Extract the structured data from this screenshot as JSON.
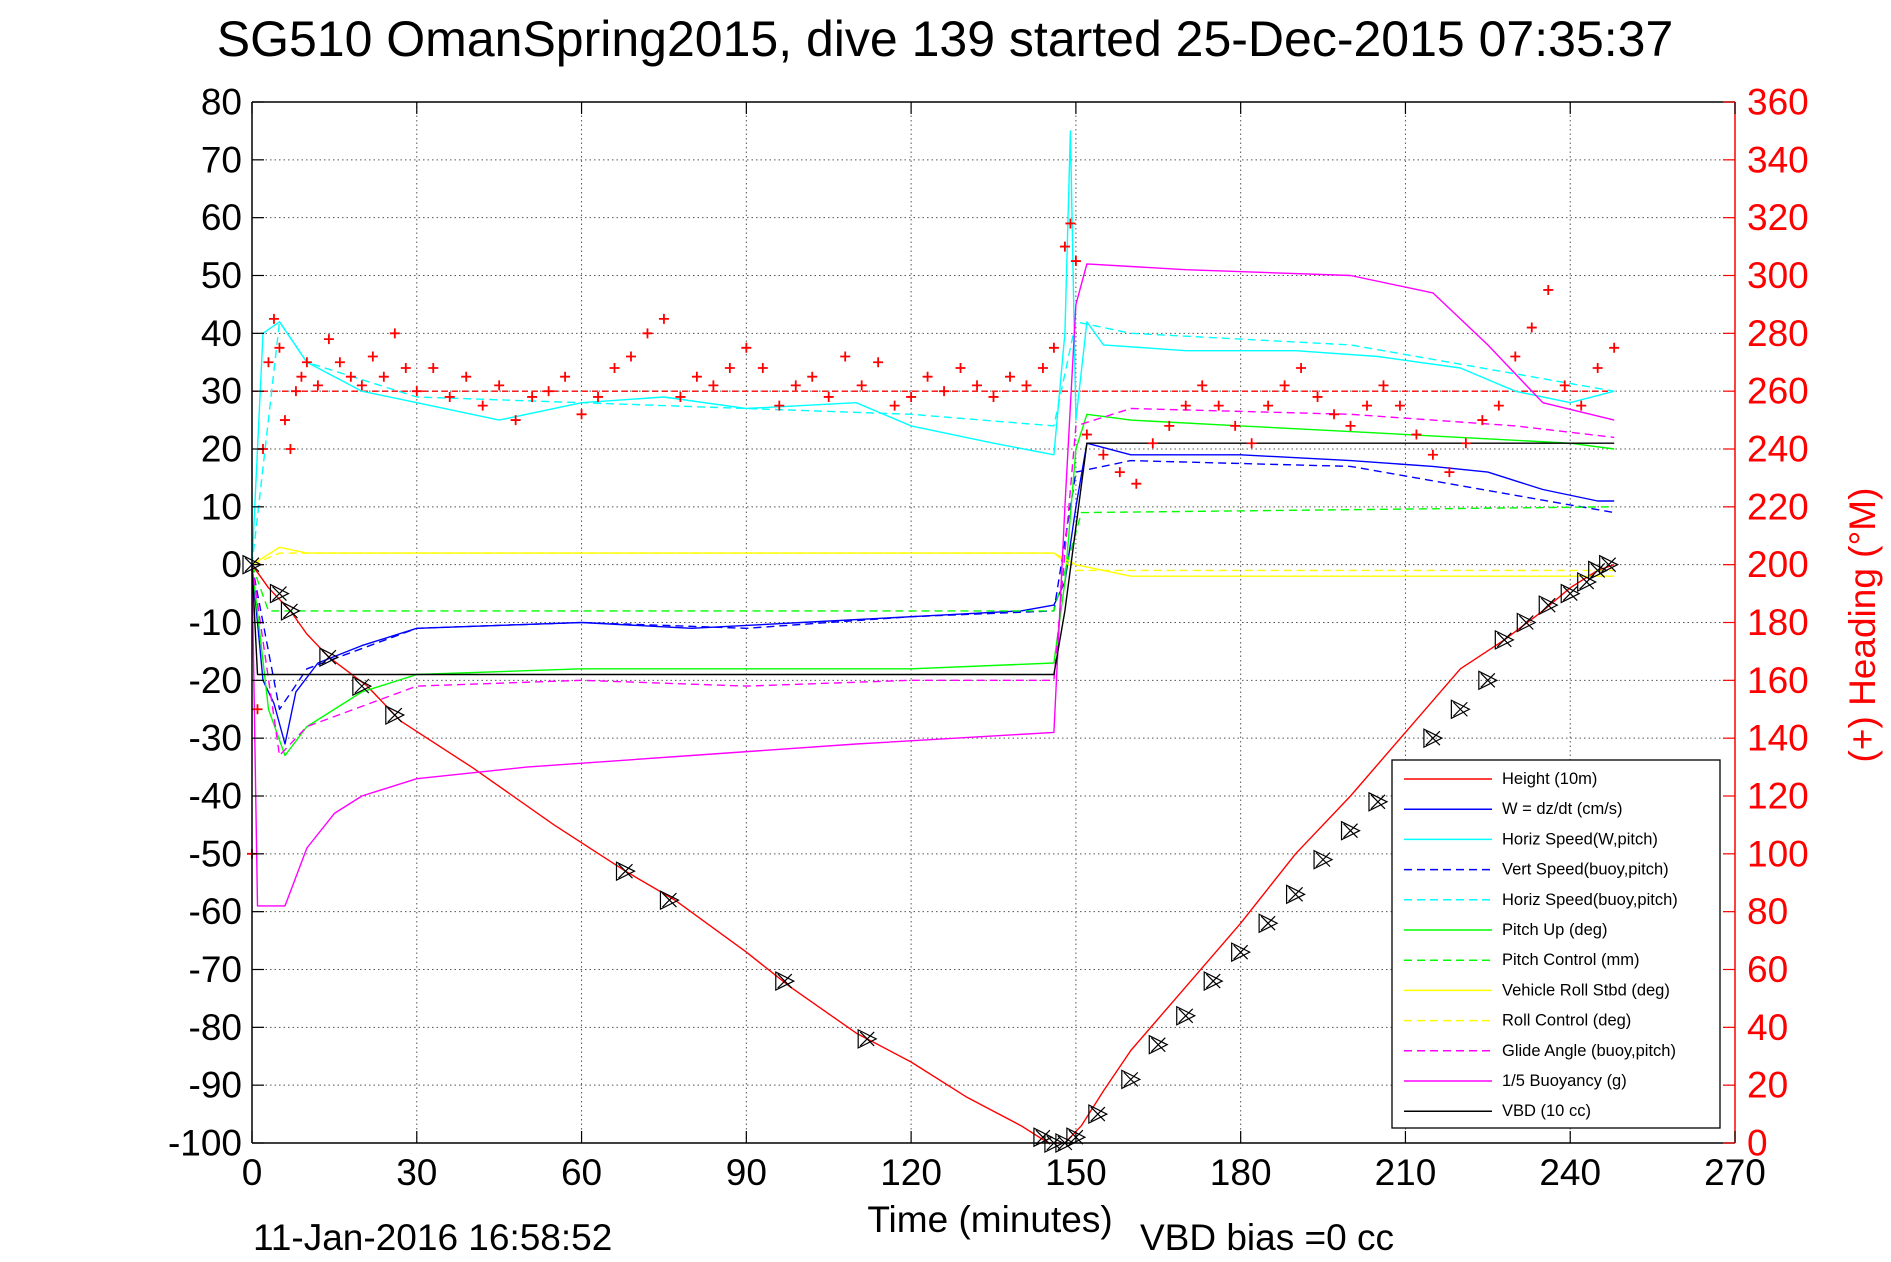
{
  "chart_data": {
    "type": "line",
    "title": "SG510 OmanSpring2015, dive 139 started 25-Dec-2015 07:35:37",
    "xlabel": "Time (minutes)",
    "ylabel_right": "(+) Heading (°M)",
    "footer_left": "11-Jan-2016 16:58:52",
    "footer_right": "VBD bias =0 cc",
    "xlim": [
      0,
      270
    ],
    "ylim": [
      -100,
      80
    ],
    "ylim_right": [
      0,
      360
    ],
    "x_ticks": [
      0,
      30,
      60,
      90,
      120,
      150,
      180,
      210,
      240,
      270
    ],
    "y_ticks": [
      80,
      70,
      60,
      50,
      40,
      30,
      20,
      10,
      0,
      -10,
      -20,
      -30,
      -40,
      -50,
      -60,
      -70,
      -80,
      -90,
      -100
    ],
    "y_ticks_right": [
      360,
      340,
      320,
      300,
      280,
      260,
      240,
      220,
      200,
      180,
      160,
      140,
      120,
      100,
      80,
      60,
      40,
      20,
      0
    ],
    "grid": true,
    "legend_position": "lower-right",
    "series": [
      {
        "name": "Height (10m)",
        "color": "#ff0000",
        "style": "solid",
        "x": [
          0,
          3,
          7,
          10,
          14,
          21,
          27,
          40,
          55,
          68,
          77,
          90,
          98,
          110,
          120,
          130,
          140,
          145,
          148,
          151,
          155,
          160,
          170,
          180,
          190,
          200,
          210,
          220,
          228,
          235,
          240,
          245,
          248
        ],
        "y": [
          0,
          -4,
          -8,
          -12,
          -16,
          -21,
          -27,
          -35,
          -45,
          -53,
          -58,
          -67,
          -73,
          -81,
          -86,
          -92,
          -97,
          -100,
          -100,
          -97,
          -91,
          -84,
          -73,
          -62,
          -50,
          -40,
          -29,
          -18,
          -13,
          -8,
          -4,
          -1,
          0
        ]
      },
      {
        "name": "W = dz/dt (cm/s)",
        "color": "#0000ff",
        "style": "solid",
        "x": [
          0,
          2,
          4,
          6,
          8,
          12,
          20,
          30,
          60,
          80,
          100,
          120,
          140,
          146,
          148,
          150,
          152,
          160,
          180,
          200,
          215,
          225,
          235,
          245,
          248
        ],
        "y": [
          0,
          -20,
          -24,
          -31,
          -22,
          -17,
          -14,
          -11,
          -10,
          -11,
          -10,
          -9,
          -8,
          -7,
          -3,
          10,
          21,
          19,
          19,
          18,
          17,
          16,
          13,
          11,
          11
        ]
      },
      {
        "name": "Horiz Speed(W,pitch)",
        "color": "#00ffff",
        "style": "solid",
        "x": [
          0,
          2,
          5,
          10,
          20,
          30,
          45,
          60,
          75,
          90,
          110,
          120,
          135,
          146,
          148,
          149,
          150,
          152,
          155,
          170,
          190,
          205,
          220,
          230,
          240,
          248
        ],
        "y": [
          0,
          40,
          42,
          35,
          30,
          28,
          25,
          28,
          29,
          27,
          28,
          24,
          21,
          19,
          40,
          75,
          25,
          42,
          38,
          37,
          37,
          36,
          34,
          30,
          28,
          30
        ]
      },
      {
        "name": "Vert Speed(buoy,pitch)",
        "color": "#0000ff",
        "style": "dashed",
        "x": [
          0,
          5,
          10,
          30,
          60,
          90,
          120,
          146,
          150,
          160,
          200,
          230,
          248
        ],
        "y": [
          0,
          -25,
          -18,
          -11,
          -10,
          -11,
          -9,
          -8,
          16,
          18,
          17,
          12,
          9
        ]
      },
      {
        "name": "Horiz Speed(buoy,pitch)",
        "color": "#00ffff",
        "style": "dashed",
        "x": [
          0,
          5,
          10,
          30,
          60,
          90,
          120,
          146,
          150,
          160,
          200,
          230,
          248
        ],
        "y": [
          0,
          42,
          35,
          29,
          28,
          27,
          26,
          24,
          42,
          40,
          38,
          33,
          30
        ]
      },
      {
        "name": "Pitch Up (deg)",
        "color": "#00ff00",
        "style": "solid",
        "x": [
          0,
          3,
          6,
          10,
          20,
          30,
          60,
          90,
          120,
          146,
          148,
          150,
          152,
          160,
          180,
          200,
          220,
          240,
          248
        ],
        "y": [
          0,
          -25,
          -33,
          -28,
          -22,
          -19,
          -18,
          -18,
          -18,
          -17,
          -3,
          20,
          26,
          25,
          24,
          23,
          22,
          21,
          20
        ]
      },
      {
        "name": "Pitch Control (mm)",
        "color": "#00ff00",
        "style": "dashed",
        "x": [
          0,
          3,
          6,
          60,
          146,
          151,
          248
        ],
        "y": [
          0,
          -8,
          -8,
          -8,
          -8,
          9,
          10
        ]
      },
      {
        "name": "Vehicle Roll Stbd (deg)",
        "color": "#ffff00",
        "style": "solid",
        "x": [
          0,
          5,
          10,
          30,
          60,
          90,
          120,
          146,
          150,
          160,
          180,
          200,
          220,
          240,
          248
        ],
        "y": [
          0,
          3,
          2,
          2,
          2,
          2,
          2,
          2,
          0,
          -2,
          -2,
          -2,
          -2,
          -2,
          -2
        ]
      },
      {
        "name": "Roll Control (deg)",
        "color": "#ffff00",
        "style": "dashed",
        "x": [
          0,
          5,
          30,
          60,
          90,
          120,
          146,
          150,
          200,
          248
        ],
        "y": [
          0,
          2,
          2,
          2,
          2,
          2,
          2,
          -1,
          -1,
          -1
        ]
      },
      {
        "name": "Glide Angle (buoy,pitch)",
        "color": "#ff00ff",
        "style": "dashed",
        "x": [
          0,
          5,
          10,
          30,
          60,
          90,
          120,
          146,
          150,
          160,
          200,
          230,
          248
        ],
        "y": [
          0,
          -33,
          -28,
          -21,
          -20,
          -21,
          -20,
          -20,
          24,
          27,
          26,
          24,
          22
        ]
      },
      {
        "name": "1/5 Buoyancy (g)",
        "color": "#ff00ff",
        "style": "solid",
        "x": [
          0,
          1,
          6,
          10,
          15,
          20,
          30,
          50,
          80,
          110,
          146,
          148,
          150,
          152,
          170,
          200,
          215,
          225,
          235,
          248
        ],
        "y": [
          0,
          -59,
          -59,
          -49,
          -43,
          -40,
          -37,
          -35,
          -33,
          -31,
          -29,
          10,
          45,
          52,
          51,
          50,
          47,
          38,
          28,
          25
        ]
      },
      {
        "name": "VBD (10 cc)",
        "color": "#000000",
        "style": "solid",
        "x": [
          0,
          1,
          146,
          148,
          152,
          248
        ],
        "y": [
          0,
          -19,
          -19,
          -8,
          21,
          21
        ]
      }
    ],
    "heading_markers": {
      "name": "(+) Heading (°M)",
      "color": "#ff0000",
      "x": [
        0,
        1,
        2,
        3,
        4,
        5,
        6,
        7,
        8,
        9,
        10,
        12,
        14,
        16,
        18,
        20,
        22,
        24,
        26,
        28,
        30,
        33,
        36,
        39,
        42,
        45,
        48,
        51,
        54,
        57,
        60,
        63,
        66,
        69,
        72,
        75,
        78,
        81,
        84,
        87,
        90,
        93,
        96,
        99,
        102,
        105,
        108,
        111,
        114,
        117,
        120,
        123,
        126,
        129,
        132,
        135,
        138,
        141,
        144,
        146,
        148,
        149,
        150,
        152,
        155,
        158,
        161,
        164,
        167,
        170,
        173,
        176,
        179,
        182,
        185,
        188,
        191,
        194,
        197,
        200,
        203,
        206,
        209,
        212,
        215,
        218,
        221,
        224,
        227,
        230,
        233,
        236,
        239,
        242,
        245,
        248
      ],
      "y": [
        100,
        150,
        240,
        270,
        285,
        275,
        250,
        240,
        260,
        265,
        270,
        262,
        278,
        270,
        265,
        262,
        272,
        265,
        280,
        268,
        260,
        268,
        258,
        265,
        255,
        262,
        250,
        258,
        260,
        265,
        252,
        258,
        268,
        272,
        280,
        285,
        258,
        265,
        262,
        268,
        275,
        268,
        255,
        262,
        265,
        258,
        272,
        262,
        270,
        255,
        258,
        265,
        260,
        268,
        262,
        258,
        265,
        262,
        268,
        275,
        310,
        318,
        305,
        245,
        238,
        232,
        228,
        242,
        248,
        255,
        262,
        255,
        248,
        242,
        255,
        262,
        268,
        258,
        252,
        248,
        255,
        262,
        255,
        245,
        238,
        232,
        242,
        250,
        255,
        272,
        282,
        295,
        262,
        255,
        268,
        275
      ]
    },
    "depth_markers": {
      "x": [
        0,
        5,
        7,
        14,
        20,
        26,
        68,
        76,
        97,
        112,
        144,
        146,
        148,
        150,
        154,
        160,
        165,
        170,
        175,
        180,
        185,
        190,
        195,
        200,
        205,
        210,
        215,
        220,
        225,
        228,
        232,
        236,
        240,
        243,
        245,
        247
      ],
      "y": [
        0,
        -5,
        -8,
        -16,
        -21,
        -26,
        -53,
        -58,
        -72,
        -82,
        -99,
        -100,
        -100,
        -99,
        -95,
        -89,
        -83,
        -78,
        -72,
        -67,
        -62,
        -57,
        -51,
        -46,
        -41,
        -36,
        -30,
        -25,
        -20,
        -13,
        -10,
        -7,
        -5,
        -3,
        -1,
        0
      ]
    },
    "dashed_refs": [
      {
        "name": "heading-target",
        "color": "#ff0000",
        "y_right": 260,
        "x": [
          0,
          248
        ]
      }
    ]
  }
}
